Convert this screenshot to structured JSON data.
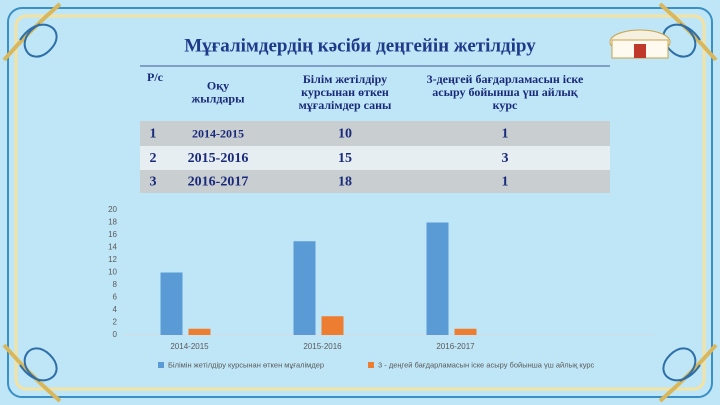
{
  "title": "Мұғалімдердің кәсіби деңгейін жетілдіру",
  "table": {
    "header": [
      [
        "Р/с"
      ],
      [
        "Оқу",
        "жылдары"
      ],
      [
        "Білім жетілдіру",
        "курсынан өткен",
        "мұғалімдер саны"
      ],
      [
        "3-деңгей бағдарламасын іске",
        "асыру бойынша үш айлық",
        "курс"
      ]
    ],
    "rows": [
      [
        "1",
        "2014-2015",
        "10",
        "1"
      ],
      [
        "2",
        "2015-2016",
        "15",
        "3"
      ],
      [
        "3",
        "2016-2017",
        "18",
        "1"
      ]
    ]
  },
  "chart_data": {
    "type": "bar",
    "categories": [
      "2014-2015",
      "2015-2016",
      "2016-2017",
      null
    ],
    "series": [
      {
        "name": "Білімін жетілдіру курсынан өткен мұғалімдер",
        "color": "#5b9bd5",
        "values": [
          10,
          15,
          18,
          null
        ]
      },
      {
        "name": "3 - деңгей бағдарламасын іске асыру бойынша үш айлық курс",
        "color": "#ed7d31",
        "values": [
          1,
          3,
          1,
          null
        ]
      }
    ],
    "ylim": [
      0,
      20
    ],
    "yticks": [
      0,
      2,
      4,
      6,
      8,
      10,
      12,
      14,
      16,
      18,
      20
    ],
    "grid": false,
    "legend": "bottom"
  }
}
